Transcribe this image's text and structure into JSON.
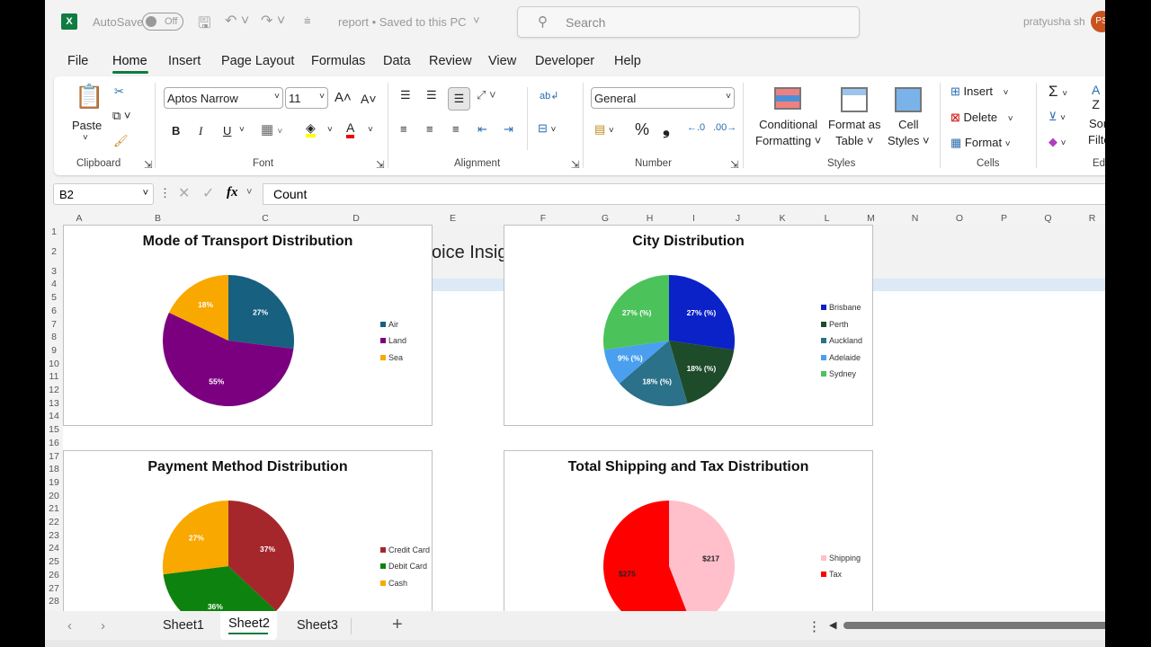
{
  "titlebar": {
    "autosave": "AutoSave",
    "toggle": "Off",
    "doc": "report • Saved to this PC",
    "search_placeholder": "Search",
    "user": "pratyusha sh",
    "avatar": "PS"
  },
  "menu": [
    "File",
    "Home",
    "Insert",
    "Page Layout",
    "Formulas",
    "Data",
    "Review",
    "View",
    "Developer",
    "Help"
  ],
  "ribbon": {
    "clipboard": {
      "paste": "Paste",
      "label": "Clipboard"
    },
    "font": {
      "name": "Aptos Narrow",
      "size": "11",
      "label": "Font",
      "bold": "B",
      "italic": "I",
      "underline": "U"
    },
    "alignment": {
      "label": "Alignment"
    },
    "number": {
      "format": "General",
      "label": "Number",
      "percent": "%",
      "comma": "❟"
    },
    "styles": {
      "conditional": [
        "Conditional",
        "Formatting ˅"
      ],
      "format_table": [
        "Format as",
        "Table ˅"
      ],
      "cell_styles": [
        "Cell",
        "Styles ˅"
      ],
      "label": "Styles"
    },
    "cells": {
      "insert": "Insert",
      "delete": "Delete",
      "format": "Format",
      "label": "Cells"
    },
    "editing": {
      "sort": "Sor",
      "filter": "Filte",
      "label": "Edi"
    }
  },
  "formula_bar": {
    "name_box": "B2",
    "fx": "fx",
    "value": "Count"
  },
  "columns": [
    "A",
    "B",
    "C",
    "D",
    "E",
    "F",
    "G",
    "H",
    "I",
    "J",
    "K",
    "L",
    "M",
    "N",
    "O",
    "P",
    "Q",
    "R"
  ],
  "rows": [
    "1",
    "2",
    "3",
    "4",
    "5",
    "6",
    "7",
    "8",
    "9",
    "10",
    "11",
    "12",
    "13",
    "14",
    "15",
    "16",
    "17",
    "18",
    "19",
    "20",
    "21",
    "22",
    "23",
    "24",
    "25",
    "26",
    "27",
    "28"
  ],
  "cell_text": "oice Insig",
  "sheets": [
    "Sheet1",
    "Sheet2",
    "Sheet3"
  ],
  "active_sheet": "Sheet2",
  "chart_data": [
    {
      "type": "pie",
      "title": "Mode of Transport Distribution",
      "categories": [
        "Air",
        "Land",
        "Sea"
      ],
      "values": [
        27,
        55,
        18
      ],
      "labels": [
        "27%",
        "55%",
        "18%"
      ],
      "colors": [
        "#17607f",
        "#7b0080",
        "#f9a800"
      ],
      "label_color": "#ffffff",
      "legend": "right"
    },
    {
      "type": "pie",
      "title": "City Distribution",
      "categories": [
        "Brisbane",
        "Perth",
        "Auckland",
        "Adelaide",
        "Sydney"
      ],
      "values": [
        27,
        18,
        18,
        9,
        27
      ],
      "labels": [
        "27% (%)",
        "18% (%)",
        "18% (%)",
        "9% (%)",
        "27% (%)"
      ],
      "colors": [
        "#0a22c8",
        "#1e4b2a",
        "#2b7189",
        "#4aa0ef",
        "#4cc25a"
      ],
      "label_color": "#ffffff",
      "legend": "right"
    },
    {
      "type": "pie",
      "title": "Payment Method Distribution",
      "categories": [
        "Credit Card",
        "Debit Card",
        "Cash"
      ],
      "values": [
        37,
        36,
        27
      ],
      "labels": [
        "37%",
        "36%",
        "27%"
      ],
      "colors": [
        "#a5272c",
        "#0e820f",
        "#f9a800"
      ],
      "label_color": "#ffffff",
      "legend": "right"
    },
    {
      "type": "pie",
      "title": "Total Shipping and Tax Distribution",
      "categories": [
        "Shipping",
        "Tax"
      ],
      "values": [
        217,
        275
      ],
      "labels": [
        "$217",
        "$275"
      ],
      "colors": [
        "#ffc0cb",
        "#ff0000"
      ],
      "label_color": "#222222",
      "legend": "right"
    }
  ]
}
